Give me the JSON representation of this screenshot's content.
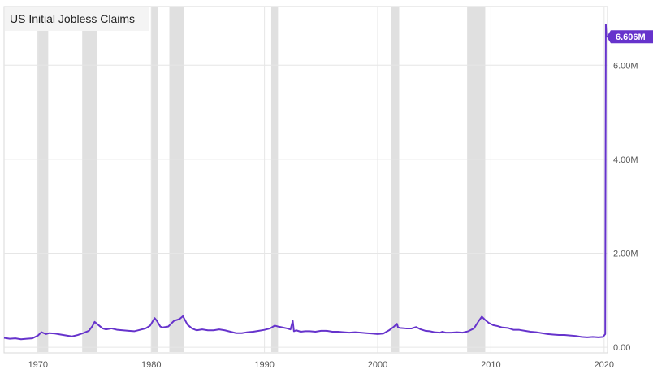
{
  "chart_data": {
    "type": "line",
    "title": "US Initial Jobless Claims",
    "xlabel": "",
    "ylabel": "",
    "xlim": [
      1967,
      2020.3
    ],
    "ylim": [
      -0.12,
      7.25
    ],
    "y_ticks": [
      {
        "value": 0,
        "label": "0.00"
      },
      {
        "value": 2,
        "label": "2.00M"
      },
      {
        "value": 4,
        "label": "4.00M"
      },
      {
        "value": 6,
        "label": "6.00M"
      }
    ],
    "x_ticks": [
      {
        "value": 1970,
        "label": "1970"
      },
      {
        "value": 1980,
        "label": "1980"
      },
      {
        "value": 1990,
        "label": "1990"
      },
      {
        "value": 2000,
        "label": "2000"
      },
      {
        "value": 2010,
        "label": "2010"
      },
      {
        "value": 2020,
        "label": "2020"
      }
    ],
    "grid": true,
    "recessions": [
      [
        1969.9,
        1970.9
      ],
      [
        1973.9,
        1975.2
      ],
      [
        1980.0,
        1980.6
      ],
      [
        1981.6,
        1982.9
      ],
      [
        1990.6,
        1991.2
      ],
      [
        2001.2,
        2001.9
      ],
      [
        2007.9,
        2009.5
      ]
    ],
    "series": [
      {
        "name": "",
        "color": "#6633cc",
        "unit": "M",
        "x": [
          1967.0,
          1967.5,
          1968.0,
          1968.5,
          1969.0,
          1969.5,
          1970.0,
          1970.3,
          1970.7,
          1971.0,
          1971.5,
          1972.0,
          1972.5,
          1973.0,
          1973.5,
          1974.0,
          1974.5,
          1974.8,
          1975.0,
          1975.3,
          1975.7,
          1976.0,
          1976.5,
          1977.0,
          1977.5,
          1978.0,
          1978.5,
          1979.0,
          1979.5,
          1979.9,
          1980.3,
          1980.5,
          1980.8,
          1981.0,
          1981.5,
          1982.0,
          1982.5,
          1982.8,
          1983.2,
          1983.6,
          1984.0,
          1984.5,
          1985.0,
          1985.5,
          1986.0,
          1986.5,
          1987.0,
          1987.5,
          1988.0,
          1988.5,
          1989.0,
          1989.5,
          1990.0,
          1990.5,
          1990.9,
          1991.2,
          1991.6,
          1992.0,
          1992.3,
          1992.5,
          1992.6,
          1992.8,
          1993.2,
          1993.6,
          1994.0,
          1994.5,
          1995.0,
          1995.5,
          1996.0,
          1996.5,
          1997.0,
          1997.5,
          1998.0,
          1998.5,
          1999.0,
          1999.5,
          2000.0,
          2000.5,
          2001.0,
          2001.4,
          2001.7,
          2001.8,
          2002.0,
          2002.5,
          2003.0,
          2003.4,
          2003.8,
          2004.2,
          2004.6,
          2005.0,
          2005.5,
          2005.7,
          2006.0,
          2006.5,
          2007.0,
          2007.5,
          2008.0,
          2008.5,
          2008.9,
          2009.2,
          2009.5,
          2009.8,
          2010.2,
          2010.6,
          2011.0,
          2011.5,
          2012.0,
          2012.5,
          2013.0,
          2013.5,
          2014.0,
          2014.5,
          2015.0,
          2015.5,
          2016.0,
          2016.5,
          2017.0,
          2017.5,
          2018.0,
          2018.5,
          2019.0,
          2019.5,
          2019.9,
          2020.1,
          2020.15,
          2020.2
        ],
        "values": [
          0.2,
          0.18,
          0.19,
          0.17,
          0.18,
          0.19,
          0.25,
          0.32,
          0.28,
          0.3,
          0.29,
          0.27,
          0.25,
          0.23,
          0.26,
          0.3,
          0.35,
          0.45,
          0.54,
          0.48,
          0.4,
          0.38,
          0.4,
          0.37,
          0.36,
          0.35,
          0.34,
          0.37,
          0.4,
          0.46,
          0.62,
          0.56,
          0.44,
          0.42,
          0.44,
          0.56,
          0.6,
          0.66,
          0.48,
          0.4,
          0.36,
          0.38,
          0.36,
          0.36,
          0.38,
          0.36,
          0.33,
          0.3,
          0.3,
          0.32,
          0.33,
          0.35,
          0.37,
          0.4,
          0.46,
          0.44,
          0.42,
          0.4,
          0.38,
          0.56,
          0.34,
          0.36,
          0.33,
          0.34,
          0.34,
          0.33,
          0.35,
          0.35,
          0.33,
          0.33,
          0.32,
          0.31,
          0.32,
          0.31,
          0.3,
          0.29,
          0.28,
          0.29,
          0.36,
          0.43,
          0.5,
          0.42,
          0.41,
          0.4,
          0.4,
          0.43,
          0.38,
          0.35,
          0.34,
          0.32,
          0.31,
          0.33,
          0.31,
          0.31,
          0.32,
          0.31,
          0.34,
          0.4,
          0.55,
          0.65,
          0.58,
          0.52,
          0.47,
          0.45,
          0.42,
          0.41,
          0.37,
          0.37,
          0.35,
          0.33,
          0.32,
          0.3,
          0.28,
          0.27,
          0.26,
          0.26,
          0.25,
          0.24,
          0.22,
          0.21,
          0.22,
          0.21,
          0.22,
          0.28,
          6.87,
          6.606
        ]
      }
    ],
    "last_value_label": "6.606M"
  }
}
